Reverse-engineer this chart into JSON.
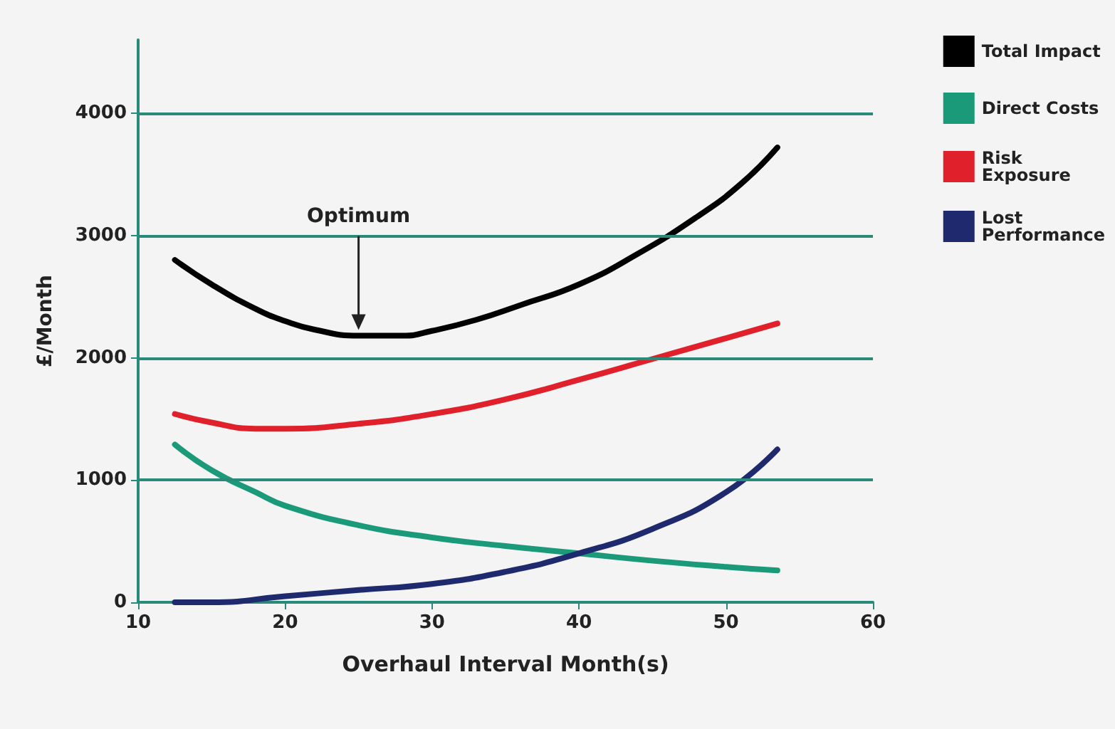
{
  "chart_data": {
    "type": "line",
    "xlabel": "Overhaul Interval Month(s)",
    "ylabel": "£/Month",
    "xlim": [
      10,
      60
    ],
    "xticks": [
      10,
      20,
      30,
      40,
      50,
      60
    ],
    "ylim": [
      0,
      4600
    ],
    "yticks": [
      0,
      1000,
      2000,
      3000,
      4000
    ],
    "grid": "y",
    "legend": "right",
    "marker": "none",
    "line_style": "solid",
    "annotations": [
      "Optimum"
    ],
    "series": [
      {
        "name": "Total Impact",
        "color": "#000000",
        "x": [
          12.5,
          15,
          18,
          20,
          22,
          25,
          28,
          30,
          33,
          36,
          40,
          44,
          48,
          51,
          53.5
        ],
        "values": [
          2800,
          2600,
          2400,
          2300,
          2230,
          2180,
          2180,
          2220,
          2310,
          2430,
          2600,
          2850,
          3150,
          3420,
          3720
        ]
      },
      {
        "name": "Direct Costs",
        "color": "#1a9a78",
        "x": [
          12.5,
          15,
          18,
          20,
          25,
          30,
          35,
          40,
          45,
          50,
          53.5
        ],
        "values": [
          1290,
          1080,
          900,
          790,
          630,
          530,
          460,
          400,
          340,
          290,
          260
        ]
      },
      {
        "name": "Risk Exposure",
        "color": "#e0202a",
        "x": [
          12.5,
          15,
          18,
          20,
          25,
          30,
          35,
          40,
          45,
          50,
          53.5
        ],
        "values": [
          1540,
          1470,
          1420,
          1420,
          1460,
          1540,
          1660,
          1820,
          1990,
          2160,
          2280
        ]
      },
      {
        "name": "Lost Performance",
        "color": "#1f2a6e",
        "x": [
          12.5,
          15,
          20,
          25,
          30,
          35,
          40,
          45,
          50,
          53.5
        ],
        "values": [
          0,
          0,
          50,
          100,
          150,
          250,
          400,
          600,
          900,
          1250
        ]
      }
    ]
  }
}
